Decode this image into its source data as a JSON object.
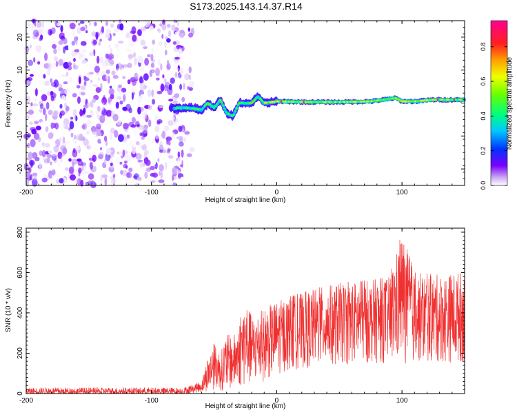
{
  "page": {
    "title": "S173.2025.143.14.37.R14"
  },
  "chart_data": [
    {
      "type": "heatmap",
      "title": "S173.2025.143.14.37.R14",
      "xlabel": "Height of straight line (km)",
      "ylabel": "Frequency (Hz)",
      "xlim": [
        -200,
        150
      ],
      "ylim": [
        -25,
        25
      ],
      "x_ticks": [
        -200,
        -100,
        0,
        100
      ],
      "y_ticks": [
        -20,
        -10,
        0,
        10,
        20
      ],
      "x_tick_labels": [
        "-200",
        "-100",
        "0",
        "100"
      ],
      "y_tick_labels": [
        "-20",
        "-10",
        "0",
        "10",
        "20"
      ],
      "colorbar": {
        "label": "Normalized spectral amplitude",
        "range": [
          0,
          0.95
        ],
        "ticks": [
          0,
          0.2,
          0.4,
          0.6,
          0.8
        ],
        "tick_labels": [
          "0.0",
          "0.2",
          "0.4",
          "0.6",
          "0.8"
        ],
        "colormap": "rainbow (white-violet-blue-cyan-green-yellow-orange-red-magenta)"
      },
      "regions": [
        {
          "name": "noise",
          "x_range": [
            -200,
            -75
          ],
          "freq_range": [
            -25,
            25
          ],
          "amplitude": [
            0.0,
            0.15
          ]
        },
        {
          "name": "ridge",
          "x_range": [
            -85,
            150
          ],
          "center_freq_approx": [
            [
              -80,
              -1.5
            ],
            [
              -70,
              -1.5
            ],
            [
              -60,
              -2
            ],
            [
              -55,
              0
            ],
            [
              -50,
              -1.5
            ],
            [
              -45,
              1
            ],
            [
              -40,
              -3
            ],
            [
              -35,
              -4
            ],
            [
              -30,
              0
            ],
            [
              -20,
              0
            ],
            [
              -15,
              2
            ],
            [
              -10,
              0
            ],
            [
              0,
              0.5
            ],
            [
              25,
              0.3
            ],
            [
              50,
              0.3
            ],
            [
              75,
              0.5
            ],
            [
              95,
              1.5
            ],
            [
              100,
              0.5
            ],
            [
              110,
              0.5
            ],
            [
              125,
              1
            ],
            [
              150,
              1
            ]
          ],
          "peak_amplitude": 0.9
        }
      ],
      "grid": false
    },
    {
      "type": "line",
      "xlabel": "Height of straight line (km)",
      "ylabel": "SNR (10 * v/v)",
      "xlim": [
        -200,
        150
      ],
      "ylim": [
        0,
        820
      ],
      "x_ticks": [
        -200,
        -100,
        0,
        100
      ],
      "y_ticks": [
        0,
        200,
        400,
        600,
        800
      ],
      "x_tick_labels": [
        "-200",
        "-100",
        "0",
        "100"
      ],
      "y_tick_labels": [
        "0",
        "200",
        "400",
        "600",
        "800"
      ],
      "color": "#f03030",
      "grid": false,
      "envelope": {
        "x": [
          -200,
          -150,
          -100,
          -75,
          -60,
          -55,
          -50,
          -45,
          -40,
          -35,
          -30,
          -25,
          -20,
          -10,
          0,
          10,
          20,
          30,
          50,
          70,
          90,
          100,
          110,
          130,
          150
        ],
        "min": [
          0,
          0,
          0,
          0,
          5,
          10,
          20,
          15,
          10,
          20,
          30,
          30,
          40,
          60,
          90,
          110,
          120,
          130,
          140,
          150,
          150,
          150,
          150,
          150,
          150
        ],
        "max": [
          30,
          30,
          30,
          30,
          60,
          180,
          250,
          200,
          300,
          280,
          350,
          470,
          380,
          420,
          460,
          480,
          500,
          520,
          550,
          560,
          580,
          800,
          600,
          590,
          610
        ]
      }
    }
  ]
}
